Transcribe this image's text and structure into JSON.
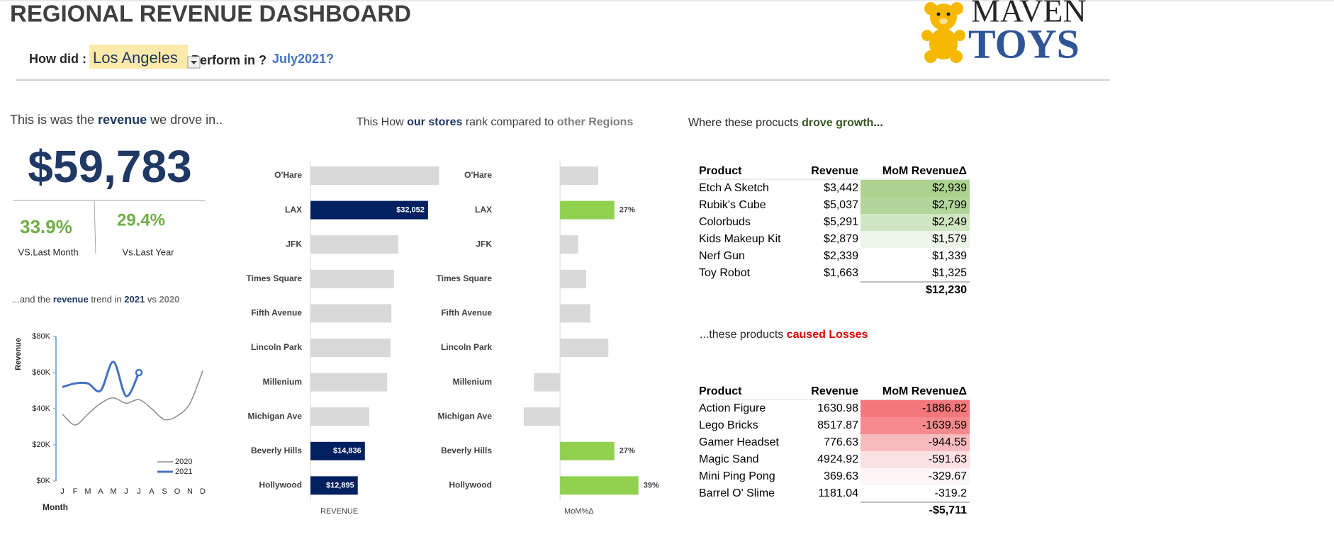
{
  "header": {
    "title": "REGIONAL REVENUE DASHBOARD",
    "prompt": "How did :",
    "region": "Los Angeles",
    "perform": "Perform in ?",
    "period": "July2021?"
  },
  "logo": {
    "line1": "MAVEN",
    "line2": "TOYS"
  },
  "revenue_heading": [
    "This is was the ",
    "revenue",
    " we drove in.."
  ],
  "kpi": {
    "revenue": "$59,783",
    "mom": "33.9%",
    "mom_label": "VS.Last Month",
    "yoy": "29.4%",
    "yoy_label": "Vs.Last Year"
  },
  "trend_heading": [
    "...and the ",
    "revenue",
    " trend in ",
    "2021",
    " vs ",
    "2020"
  ],
  "rank_heading": [
    "This How ",
    "our stores",
    " rank compared to ",
    "other Regions"
  ],
  "growth_heading": [
    "Where  these procucts ",
    "drove growth",
    "..."
  ],
  "loss_heading": [
    "...these products ",
    "caused Losses"
  ],
  "chart_data": [
    {
      "type": "line",
      "xlabel": "Month",
      "ylabel": "Revenue",
      "categories": [
        "J",
        "F",
        "M",
        "A",
        "M",
        "J",
        "J",
        "A",
        "S",
        "O",
        "N",
        "D"
      ],
      "series": [
        {
          "name": "2020",
          "color": "#8c8c8c",
          "values": [
            37000,
            31000,
            37000,
            43000,
            46000,
            43000,
            45000,
            40000,
            34000,
            36000,
            43000,
            61000
          ]
        },
        {
          "name": "2021",
          "color": "#4472c4",
          "values": [
            52000,
            54000,
            54000,
            50000,
            66000,
            47000,
            60000,
            null,
            null,
            null,
            null,
            null
          ]
        }
      ],
      "ylim": [
        0,
        80000
      ],
      "yticks": [
        {
          "value": 0,
          "label": "$0K"
        },
        {
          "value": 20000,
          "label": "$20K"
        },
        {
          "value": 40000,
          "label": "$40K"
        },
        {
          "value": 60000,
          "label": "$60K"
        },
        {
          "value": 80000,
          "label": "$80K"
        }
      ],
      "legend": "lower right"
    },
    {
      "type": "barh",
      "xlabel": "REVENUE",
      "categories": [
        "O'Hare",
        "LAX",
        "JFK",
        "Times Square",
        "Fifth Avenue",
        "Lincoln Park",
        "Millenium",
        "Michigan Ave",
        "Beverly Hills",
        "Hollywood"
      ],
      "values": [
        35070,
        32052,
        23920,
        22760,
        22060,
        21830,
        20900,
        16020,
        14836,
        12895
      ],
      "value_labels": [
        null,
        "$32,052",
        null,
        null,
        null,
        null,
        null,
        null,
        "$14,836",
        "$12,895"
      ],
      "colors": [
        "#d9d9d9",
        "#002060",
        "#d9d9d9",
        "#d9d9d9",
        "#d9d9d9",
        "#d9d9d9",
        "#d9d9d9",
        "#d9d9d9",
        "#002060",
        "#002060"
      ],
      "xlim": [
        0,
        40000
      ]
    },
    {
      "type": "barh",
      "xlabel": "MoM%Δ",
      "categories": [
        "O'Hare",
        "LAX",
        "JFK",
        "Times Square",
        "Fifth Avenue",
        "Lincoln Park",
        "Millenium",
        "Michigan Ave",
        "Beverly Hills",
        "Hollywood"
      ],
      "values": [
        19,
        27,
        9,
        13,
        15,
        24,
        -13,
        -18,
        27,
        39
      ],
      "value_labels": [
        null,
        "27%",
        null,
        null,
        null,
        null,
        null,
        null,
        "27%",
        "39%"
      ],
      "colors": [
        "#d9d9d9",
        "#92d050",
        "#d9d9d9",
        "#d9d9d9",
        "#d9d9d9",
        "#d9d9d9",
        "#d9d9d9",
        "#d9d9d9",
        "#92d050",
        "#92d050"
      ],
      "xlim": [
        -30,
        50
      ]
    }
  ],
  "growth_table": {
    "columns": [
      "Product",
      "Revenue",
      "MoM RevenueΔ"
    ],
    "rows": [
      [
        "Etch A Sketch",
        "$3,442",
        "$2,939"
      ],
      [
        "Rubik's Cube",
        "$5,037",
        "$2,799"
      ],
      [
        "Colorbuds",
        "$5,291",
        "$2,249"
      ],
      [
        "Kids Makeup Kit",
        "$2,879",
        "$1,579"
      ],
      [
        "Nerf Gun",
        "$2,339",
        "$1,339"
      ],
      [
        "Toy Robot",
        "$1,663",
        "$1,325"
      ]
    ],
    "colors": [
      "#acd28f",
      "#b2d69b",
      "#d0e6c3",
      "#eef6ea",
      "#ffffff",
      "#ffffff"
    ],
    "total": "$12,230"
  },
  "loss_table": {
    "columns": [
      "Product",
      "Revenue",
      "MoM RevenueΔ"
    ],
    "rows": [
      [
        "Action Figure",
        "1630.98",
        "-1886.82"
      ],
      [
        "Lego Bricks",
        "8517.87",
        "-1639.59"
      ],
      [
        "Gamer Headset",
        "776.63",
        "-944.55"
      ],
      [
        "Magic Sand",
        "4924.92",
        "-591.63"
      ],
      [
        "Mini Ping Pong",
        "369.63",
        "-329.67"
      ],
      [
        "Barrel O' Slime",
        "1181.04",
        "-319.2"
      ]
    ],
    "colors": [
      "#f4777b",
      "#f78a8d",
      "#f9bcbe",
      "#fce1e2",
      "#fdf6f6",
      "#ffffff"
    ],
    "total": "-$5,711"
  }
}
